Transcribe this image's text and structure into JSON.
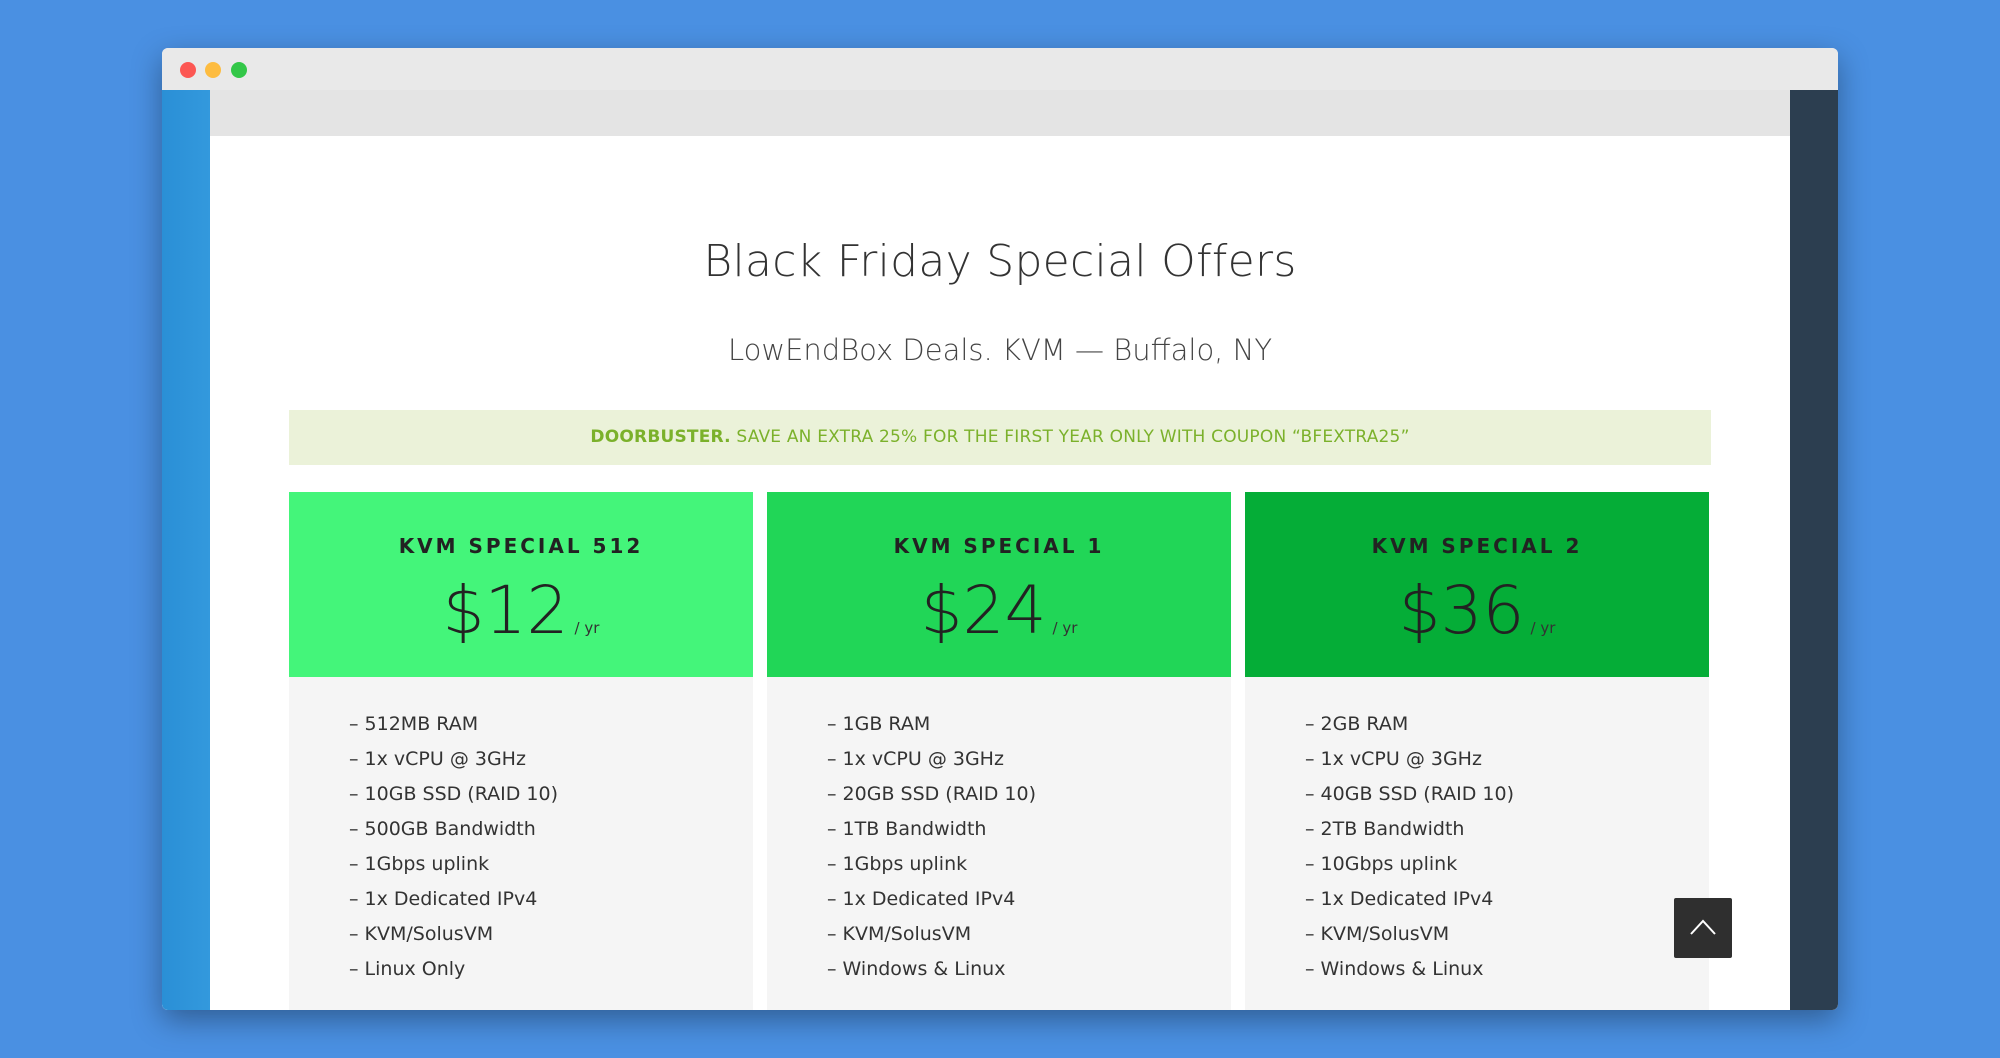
{
  "page": {
    "title": "Black Friday Special Offers",
    "subtitle": "LowEndBox Deals. KVM — Buffalo, NY",
    "coupon": {
      "strong": "DOORBUSTER.",
      "text": " SAVE AN EXTRA 25% FOR THE FIRST YEAR ONLY WITH COUPON “BFEXTRA25”"
    }
  },
  "plans": [
    {
      "name": "KVM SPECIAL 512",
      "price": "$12",
      "period": "/ yr",
      "features": [
        "– 512MB RAM",
        "– 1x vCPU @ 3GHz",
        "– 10GB SSD (RAID 10)",
        "– 500GB Bandwidth",
        "– 1Gbps uplink",
        "– 1x Dedicated IPv4",
        "– KVM/SolusVM",
        "– Linux Only"
      ]
    },
    {
      "name": "KVM SPECIAL 1",
      "price": "$24",
      "period": "/ yr",
      "features": [
        "– 1GB RAM",
        "– 1x vCPU @ 3GHz",
        "– 20GB SSD (RAID 10)",
        "– 1TB Bandwidth",
        "– 1Gbps uplink",
        "– 1x Dedicated IPv4",
        "– KVM/SolusVM",
        "– Windows & Linux"
      ]
    },
    {
      "name": "KVM SPECIAL 2",
      "price": "$36",
      "period": "/ yr",
      "features": [
        "– 2GB RAM",
        "– 1x vCPU @ 3GHz",
        "– 40GB SSD (RAID 10)",
        "– 2TB Bandwidth",
        "– 10Gbps uplink",
        "– 1x Dedicated IPv4",
        "– KVM/SolusVM",
        "– Windows & Linux"
      ]
    }
  ],
  "colors": {
    "background": "#4a90e2",
    "plan1": "#44f57a",
    "plan2": "#21d657",
    "plan3": "#05ad37",
    "coupon_bg": "#ebf2d9",
    "coupon_text": "#7bb12b"
  },
  "icons": {
    "scroll_top": "chevron-up-icon"
  }
}
